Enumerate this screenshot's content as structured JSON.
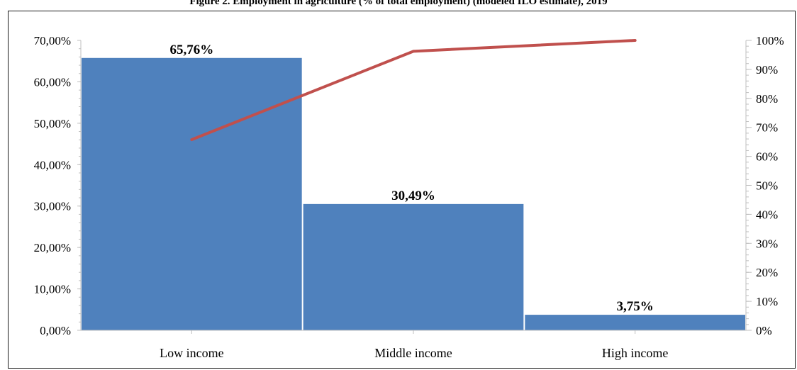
{
  "caption": "Figure 2. Employment in agriculture (% of total employment) (modeled ILO estimate), 2019",
  "chart_data": {
    "type": "bar",
    "categories": [
      "Low income",
      "Middle income",
      "High income"
    ],
    "values": [
      65.76,
      30.49,
      3.75
    ],
    "data_labels": [
      "65,76%",
      "30,49%",
      "3,75%"
    ],
    "y_left": {
      "ticks": [
        "0,00%",
        "10,00%",
        "20,00%",
        "30,00%",
        "40,00%",
        "50,00%",
        "60,00%",
        "70,00%"
      ],
      "range": [
        0,
        70
      ]
    },
    "y_right": {
      "ticks": [
        "0%",
        "10%",
        "20%",
        "30%",
        "40%",
        "50%",
        "60%",
        "70%",
        "80%",
        "90%",
        "100%"
      ],
      "range": [
        0,
        100
      ]
    },
    "cumulative_line": {
      "values": [
        65.76,
        96.25,
        100
      ]
    },
    "title": "",
    "xlabel": "",
    "ylabel": "",
    "grid": false,
    "legend": "none",
    "colors": {
      "bar": "#4f81bd",
      "line": "#c0504d",
      "axis": "#bfbfbf",
      "bar_gap": "#ffffff"
    }
  }
}
